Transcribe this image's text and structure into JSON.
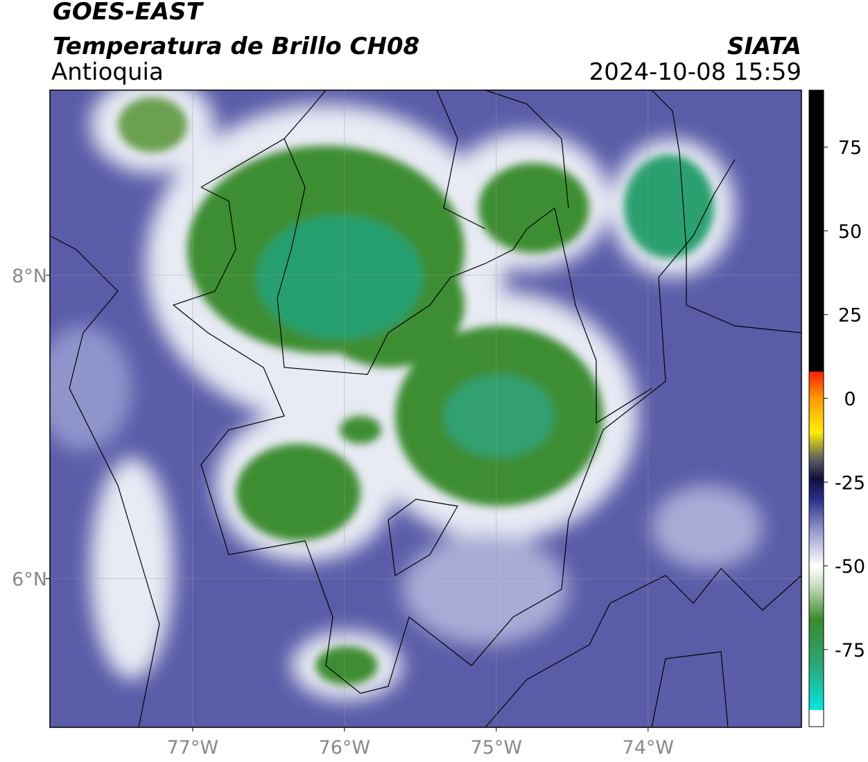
{
  "header": {
    "title": "GOES-EAST",
    "subtitle": "Temperatura de Brillo CH08",
    "region": "Antioquia",
    "source": "SIATA",
    "datetime": "2024-10-08 15:59"
  },
  "map": {
    "xlim": [
      -77.94,
      -72.99
    ],
    "ylim": [
      5.02,
      9.22
    ],
    "xticks": [
      {
        "value": -77,
        "label": "77°W"
      },
      {
        "value": -76,
        "label": "76°W"
      },
      {
        "value": -75,
        "label": "75°W"
      },
      {
        "value": -74,
        "label": "74°W"
      }
    ],
    "yticks": [
      {
        "value": 6,
        "label": "6°N"
      },
      {
        "value": 8,
        "label": "8°N"
      }
    ],
    "grid": true
  },
  "colorbar": {
    "lim": [
      -98,
      92
    ],
    "ticks": [
      -75,
      -50,
      -25,
      0,
      25,
      50,
      75
    ],
    "stops": [
      [
        -98,
        "#ffffff"
      ],
      [
        -93,
        "#ffffff"
      ],
      [
        -93,
        "#00e8e0"
      ],
      [
        -80,
        "#2aa87a"
      ],
      [
        -66,
        "#3a8a2a"
      ],
      [
        -56,
        "#c8dcc0"
      ],
      [
        -50,
        "#ffffff"
      ],
      [
        -40,
        "#9a9ed0"
      ],
      [
        -30,
        "#2a2e8a"
      ],
      [
        -24,
        "#101040"
      ],
      [
        -18,
        "#606060"
      ],
      [
        -10,
        "#ffee00"
      ],
      [
        0,
        "#ff9900"
      ],
      [
        8,
        "#ff2200"
      ],
      [
        8,
        "#000000"
      ],
      [
        92,
        "#000000"
      ]
    ]
  }
}
